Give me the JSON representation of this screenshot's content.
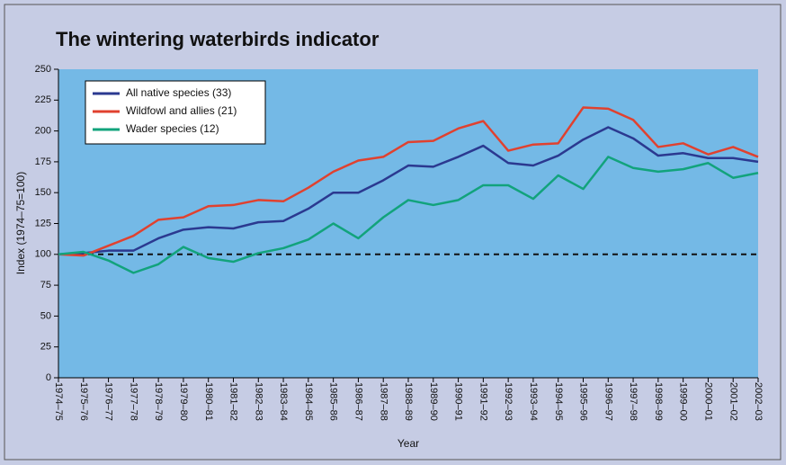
{
  "chart_data": {
    "type": "line",
    "title": "The wintering waterbirds indicator",
    "x_label": "Year",
    "y_label": "Index (1974–75=100)",
    "categories": [
      "1974–75",
      "1975–76",
      "1976–77",
      "1977–78",
      "1978–79",
      "1979–80",
      "1980–81",
      "1981–82",
      "1982–83",
      "1983–84",
      "1984–85",
      "1985–86",
      "1986–87",
      "1987–88",
      "1988–89",
      "1989–90",
      "1990–91",
      "1991–92",
      "1992–93",
      "1993–94",
      "1994–95",
      "1995–96",
      "1996–97",
      "1997–98",
      "1998–99",
      "1999–00",
      "2000–01",
      "2001–02",
      "2002–03"
    ],
    "series": [
      {
        "name": "All native species (33)",
        "color": "#2b3990",
        "values": [
          100,
          101,
          103,
          103,
          113,
          120,
          122,
          121,
          126,
          127,
          137,
          150,
          150,
          160,
          172,
          171,
          179,
          188,
          174,
          172,
          180,
          193,
          203,
          194,
          180,
          182,
          178,
          178,
          175
        ]
      },
      {
        "name": "Wildfowl and allies (21)",
        "color": "#e0412f",
        "values": [
          100,
          99,
          107,
          115,
          128,
          130,
          139,
          140,
          144,
          143,
          154,
          167,
          176,
          179,
          191,
          192,
          202,
          208,
          184,
          189,
          190,
          219,
          218,
          209,
          187,
          190,
          181,
          187,
          179
        ]
      },
      {
        "name": "Wader species (12)",
        "color": "#12a37c",
        "values": [
          100,
          102,
          95,
          85,
          92,
          106,
          97,
          94,
          101,
          105,
          112,
          125,
          113,
          130,
          144,
          140,
          144,
          156,
          156,
          145,
          164,
          153,
          179,
          170,
          167,
          169,
          174,
          162,
          166
        ]
      }
    ],
    "reference_line": 100,
    "ylim": [
      0,
      250
    ],
    "yticks": [
      0,
      25,
      50,
      75,
      100,
      125,
      150,
      175,
      200,
      225,
      250
    ],
    "legend": "upper left"
  }
}
